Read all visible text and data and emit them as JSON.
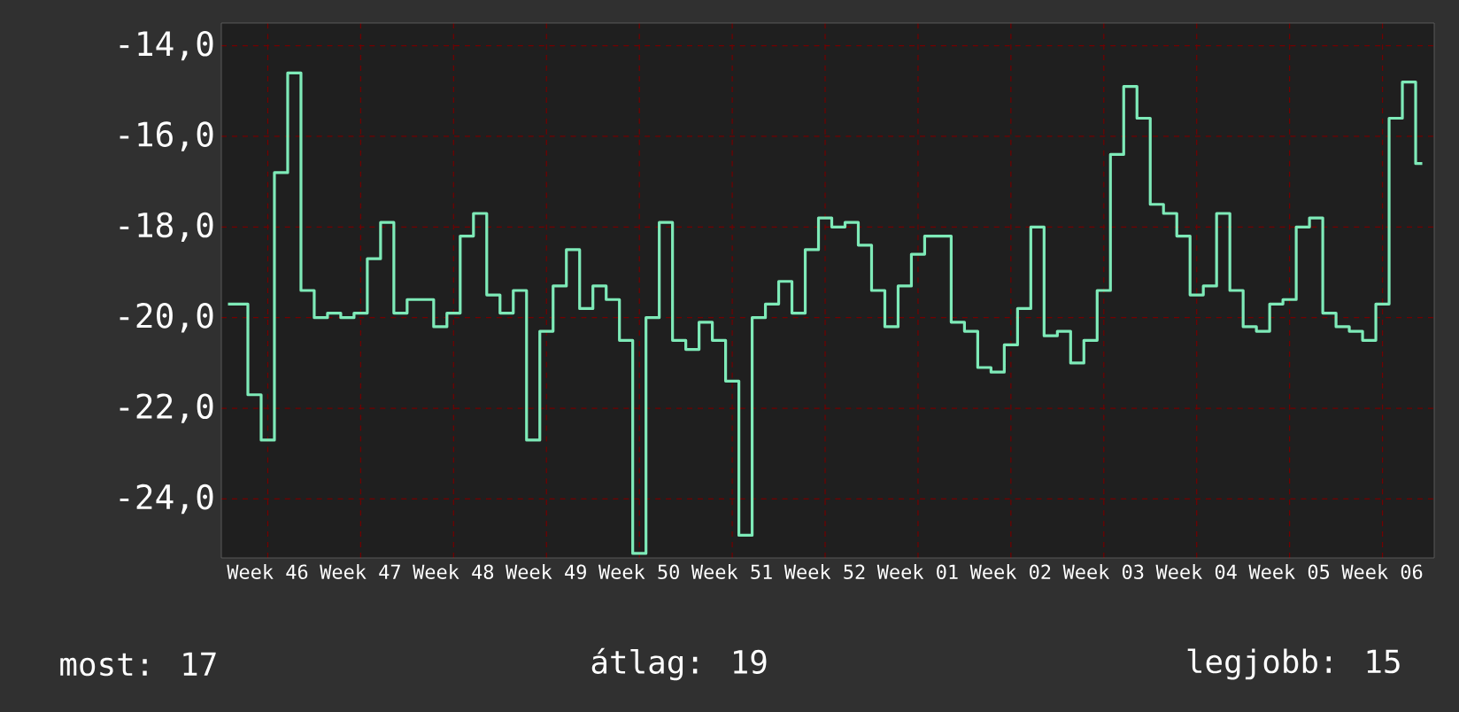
{
  "chart_data": {
    "type": "step",
    "categories": [
      null,
      null,
      null,
      "Week 46",
      null,
      null,
      null,
      null,
      null,
      null,
      "Week 47",
      null,
      null,
      null,
      null,
      null,
      null,
      "Week 48",
      null,
      null,
      null,
      null,
      null,
      null,
      "Week 49",
      null,
      null,
      null,
      null,
      null,
      null,
      "Week 50",
      null,
      null,
      null,
      null,
      null,
      null,
      "Week 51",
      null,
      null,
      null,
      null,
      null,
      null,
      "Week 52",
      null,
      null,
      null,
      null,
      null,
      null,
      "Week 01",
      null,
      null,
      null,
      null,
      null,
      null,
      "Week 02",
      null,
      null,
      null,
      null,
      null,
      null,
      "Week 03",
      null,
      null,
      null,
      null,
      null,
      null,
      "Week 04",
      null,
      null,
      null,
      null,
      null,
      null,
      "Week 05",
      null,
      null,
      null,
      null,
      null,
      null,
      "Week 06",
      null,
      null,
      null
    ],
    "values": [
      -19.7,
      -19.7,
      -21.7,
      -22.7,
      -16.8,
      -14.6,
      -19.4,
      -20.0,
      -19.9,
      -20.0,
      -19.9,
      -18.7,
      -17.9,
      -19.9,
      -19.6,
      -19.6,
      -20.2,
      -19.9,
      -18.2,
      -17.7,
      -19.5,
      -19.9,
      -19.4,
      -22.7,
      -20.3,
      -19.3,
      -18.5,
      -19.8,
      -19.3,
      -19.6,
      -20.5,
      -25.2,
      -20.0,
      -17.9,
      -20.5,
      -20.7,
      -20.1,
      -20.5,
      -21.4,
      -24.8,
      -20.0,
      -19.7,
      -19.2,
      -19.9,
      -18.5,
      -17.8,
      -18.0,
      -17.9,
      -18.4,
      -19.4,
      -20.2,
      -19.3,
      -18.6,
      -18.2,
      -18.2,
      -20.1,
      -20.3,
      -21.1,
      -21.2,
      -20.6,
      -19.8,
      -18.0,
      -20.4,
      -20.3,
      -21.0,
      -20.5,
      -19.4,
      -16.4,
      -14.9,
      -15.6,
      -17.5,
      -17.7,
      -18.2,
      -19.5,
      -19.3,
      -17.7,
      -19.4,
      -20.2,
      -20.3,
      -19.7,
      -19.6,
      -18.0,
      -17.8,
      -19.9,
      -20.2,
      -20.3,
      -20.5,
      -19.7,
      -15.6,
      -14.8,
      -16.6
    ],
    "color": "#7eeab8",
    "ylim": [
      -25.3,
      -13.5
    ],
    "yticks": [
      {
        "value": -14,
        "label": "-14,0"
      },
      {
        "value": -16,
        "label": "-16,0"
      },
      {
        "value": -18,
        "label": "-18,0"
      },
      {
        "value": -20,
        "label": "-20,0"
      },
      {
        "value": -22,
        "label": "-22,0"
      },
      {
        "value": -24,
        "label": "-24,0"
      }
    ],
    "grid": true,
    "annotations": [
      "most: 17",
      "átlag: 19",
      "legjobb: 15"
    ]
  }
}
